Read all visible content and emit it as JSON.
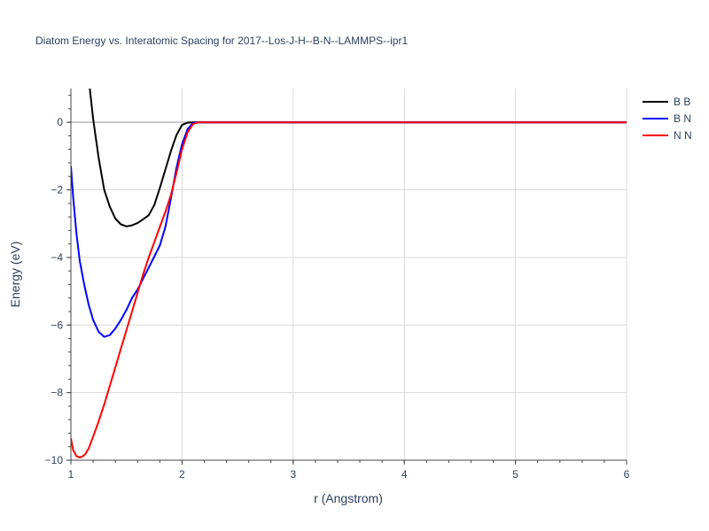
{
  "chart_data": {
    "type": "line",
    "title": "Diatom Energy vs. Interatomic Spacing for 2017--Los-J-H--B-N--LAMMPS--ipr1",
    "xlabel": "r (Angstrom)",
    "ylabel": "Energy (eV)",
    "xlim": [
      1,
      6
    ],
    "ylim": [
      -10,
      1
    ],
    "xticks": [
      1,
      2,
      3,
      4,
      5,
      6
    ],
    "xtick_labels": [
      "1",
      "2",
      "3",
      "4",
      "5",
      "6"
    ],
    "yticks": [
      0,
      -2,
      -4,
      -6,
      -8,
      -10
    ],
    "ytick_labels": [
      "0",
      "−2",
      "−4",
      "−6",
      "−8",
      "−10"
    ],
    "grid": true,
    "legend_position": "top-right",
    "series": [
      {
        "name": "B B",
        "color": "#000000",
        "x": [
          1.17,
          1.2,
          1.25,
          1.3,
          1.35,
          1.4,
          1.45,
          1.5,
          1.55,
          1.6,
          1.65,
          1.7,
          1.75,
          1.8,
          1.85,
          1.9,
          1.95,
          2.0,
          2.05,
          2.1,
          2.15,
          2.2,
          2.3,
          2.5,
          3.0,
          4.0,
          5.0,
          6.0
        ],
        "y": [
          1.0,
          0.1,
          -1.05,
          -2.0,
          -2.5,
          -2.85,
          -3.02,
          -3.08,
          -3.05,
          -2.98,
          -2.87,
          -2.75,
          -2.45,
          -1.95,
          -1.4,
          -0.85,
          -0.38,
          -0.08,
          -0.01,
          0.0,
          0.0,
          0.0,
          0.0,
          0.0,
          0.0,
          0.0,
          0.0,
          0.0
        ]
      },
      {
        "name": "B N",
        "color": "#0000ff",
        "x": [
          1.0,
          1.02,
          1.05,
          1.08,
          1.12,
          1.16,
          1.2,
          1.25,
          1.3,
          1.35,
          1.4,
          1.45,
          1.5,
          1.55,
          1.6,
          1.7,
          1.8,
          1.85,
          1.9,
          1.95,
          2.0,
          2.05,
          2.1,
          2.15,
          2.2,
          2.3,
          2.5,
          3.0,
          4.0,
          5.0,
          6.0
        ],
        "y": [
          -1.3,
          -2.2,
          -3.3,
          -4.1,
          -4.8,
          -5.4,
          -5.85,
          -6.2,
          -6.35,
          -6.3,
          -6.1,
          -5.85,
          -5.55,
          -5.2,
          -4.95,
          -4.3,
          -3.65,
          -3.1,
          -2.25,
          -1.35,
          -0.65,
          -0.2,
          -0.02,
          0.0,
          0.0,
          0.0,
          0.0,
          0.0,
          0.0,
          0.0,
          0.0
        ]
      },
      {
        "name": "N N",
        "color": "#ff0000",
        "x": [
          1.0,
          1.02,
          1.05,
          1.08,
          1.1,
          1.13,
          1.16,
          1.2,
          1.25,
          1.3,
          1.35,
          1.4,
          1.45,
          1.5,
          1.55,
          1.6,
          1.65,
          1.7,
          1.75,
          1.8,
          1.85,
          1.9,
          1.95,
          2.0,
          2.05,
          2.1,
          2.15,
          2.2,
          2.3,
          2.5,
          3.0,
          4.0,
          5.0,
          6.0
        ],
        "y": [
          -9.35,
          -9.7,
          -9.88,
          -9.92,
          -9.9,
          -9.82,
          -9.65,
          -9.3,
          -8.85,
          -8.35,
          -7.8,
          -7.25,
          -6.7,
          -6.15,
          -5.6,
          -5.05,
          -4.5,
          -4.0,
          -3.55,
          -3.1,
          -2.65,
          -2.15,
          -1.5,
          -0.8,
          -0.3,
          -0.05,
          0.0,
          0.0,
          0.0,
          0.0,
          0.0,
          0.0,
          0.0,
          0.0
        ]
      }
    ]
  }
}
